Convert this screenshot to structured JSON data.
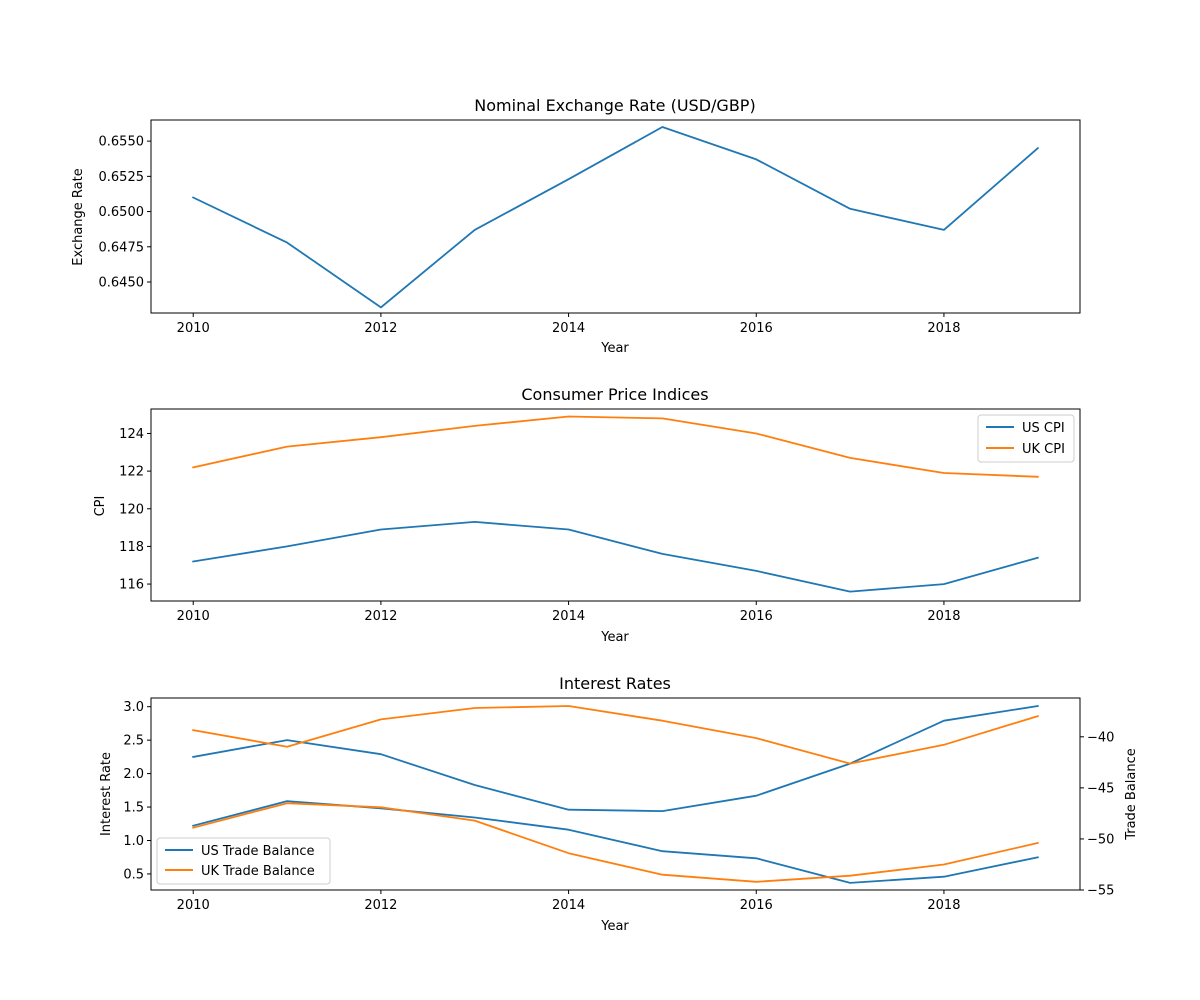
{
  "chart_data": [
    {
      "type": "line",
      "title": "Nominal Exchange Rate (USD/GBP)",
      "xlabel": "Year",
      "ylabel": "Exchange Rate",
      "x": [
        2010,
        2011,
        2012,
        2013,
        2014,
        2015,
        2016,
        2017,
        2018,
        2019
      ],
      "xticks": [
        2010,
        2012,
        2014,
        2016,
        2018
      ],
      "yticks": [
        0.645,
        0.6475,
        0.65,
        0.6525,
        0.655
      ],
      "ytick_labels": [
        "0.6450",
        "0.6475",
        "0.6500",
        "0.6525",
        "0.6550"
      ],
      "ylim": [
        0.6428,
        0.6565
      ],
      "xlim": [
        2009.55,
        2019.45
      ],
      "grid": false,
      "series": [
        {
          "name": "",
          "color": "#1f77b4",
          "values": [
            0.651,
            0.6478,
            0.6432,
            0.6487,
            0.6523,
            0.656,
            0.6537,
            0.6502,
            0.6487,
            0.6545
          ]
        }
      ]
    },
    {
      "type": "line",
      "title": "Consumer Price Indices",
      "xlabel": "Year",
      "ylabel": "CPI",
      "x": [
        2010,
        2011,
        2012,
        2013,
        2014,
        2015,
        2016,
        2017,
        2018,
        2019
      ],
      "xticks": [
        2010,
        2012,
        2014,
        2016,
        2018
      ],
      "yticks": [
        116,
        118,
        120,
        122,
        124
      ],
      "ytick_labels": [
        "116",
        "118",
        "120",
        "122",
        "124"
      ],
      "ylim": [
        115.1,
        125.3
      ],
      "xlim": [
        2009.55,
        2019.45
      ],
      "grid": false,
      "legend": "top-right",
      "series": [
        {
          "name": "US CPI",
          "color": "#1f77b4",
          "values": [
            117.2,
            118.0,
            118.9,
            119.3,
            118.9,
            117.6,
            116.7,
            115.6,
            116.0,
            117.4
          ]
        },
        {
          "name": "UK CPI",
          "color": "#ff7f0e",
          "values": [
            122.2,
            123.3,
            123.8,
            124.4,
            124.9,
            124.8,
            124.0,
            122.7,
            121.9,
            121.7
          ]
        }
      ]
    },
    {
      "type": "line",
      "title": "Interest Rates",
      "xlabel": "Year",
      "ylabel": "Interest Rate",
      "y2label": "Trade Balance",
      "x": [
        2010,
        2011,
        2012,
        2013,
        2014,
        2015,
        2016,
        2017,
        2018,
        2019
      ],
      "xticks": [
        2010,
        2012,
        2014,
        2016,
        2018
      ],
      "yticks": [
        0.5,
        1.0,
        1.5,
        2.0,
        2.5,
        3.0
      ],
      "ytick_labels": [
        "0.5",
        "1.0",
        "1.5",
        "2.0",
        "2.5",
        "3.0"
      ],
      "y2ticks": [
        -55,
        -50,
        -45,
        -40
      ],
      "y2tick_labels": [
        "−55",
        "−50",
        "−45",
        "−40"
      ],
      "ylim": [
        0.26,
        3.13
      ],
      "y2lim": [
        -55,
        -36.2
      ],
      "xlim": [
        2009.55,
        2019.45
      ],
      "grid": false,
      "legend": "bottom-left",
      "series": [
        {
          "name": "",
          "axis": "left",
          "color": "#1f77b4",
          "values": [
            2.25,
            2.5,
            2.29,
            1.83,
            1.46,
            1.44,
            1.67,
            2.15,
            2.79,
            3.01
          ]
        },
        {
          "name": "",
          "axis": "left",
          "color": "#ff7f0e",
          "values": [
            2.65,
            2.4,
            2.81,
            2.98,
            3.01,
            2.79,
            2.53,
            2.15,
            2.43,
            2.86
          ]
        },
        {
          "name": "US Trade Balance",
          "axis": "right",
          "color": "#1f77b4",
          "values": [
            -48.7,
            -46.3,
            -47.0,
            -47.9,
            -49.1,
            -51.2,
            -51.9,
            -54.3,
            -53.7,
            -51.8
          ]
        },
        {
          "name": "UK Trade Balance",
          "axis": "right",
          "color": "#ff7f0e",
          "values": [
            -48.9,
            -46.5,
            -46.9,
            -48.2,
            -51.4,
            -53.5,
            -54.2,
            -53.6,
            -52.5,
            -50.4
          ]
        }
      ]
    }
  ]
}
